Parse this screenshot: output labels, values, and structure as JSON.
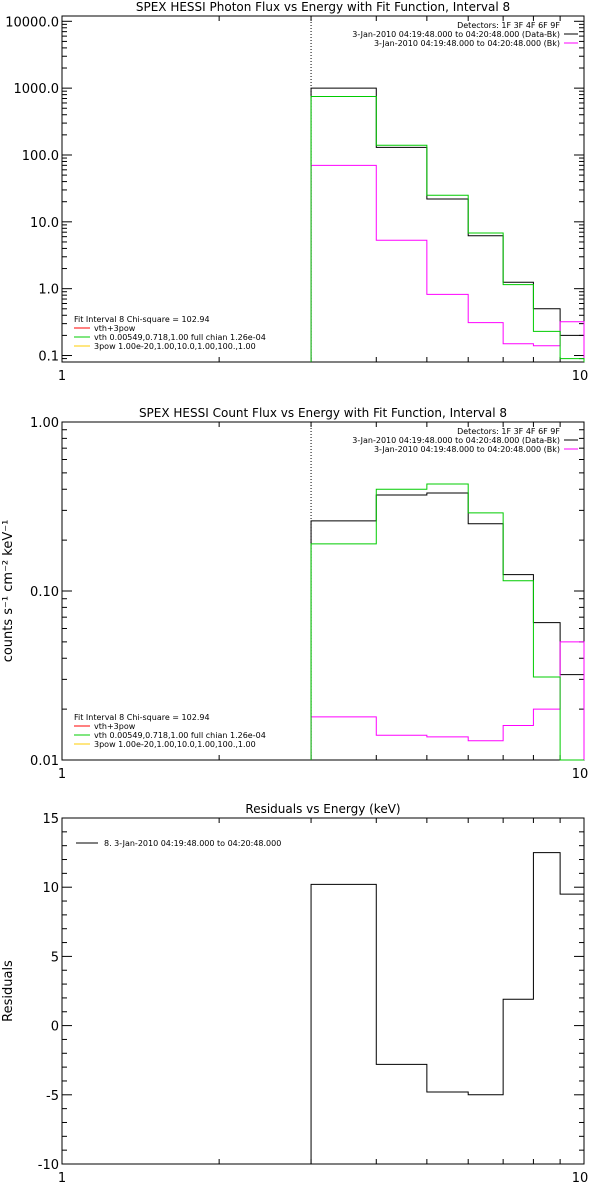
{
  "colors": {
    "data": "#000000",
    "bk": "#ff00ff",
    "model": "#00cc00",
    "vth3pow": "#ff0000",
    "pow3": "#ffcc00"
  },
  "chart_data": [
    {
      "type": "line",
      "title": "SPEX HESSI Photon Flux vs Energy with Fit Function, Interval 8",
      "xlabel": "",
      "ylabel": "",
      "xscale": "log",
      "yscale": "log",
      "xlim": [
        1,
        10
      ],
      "ylim": [
        0.08,
        12000
      ],
      "xticks": [
        "1",
        "10"
      ],
      "yticks": [
        {
          "v": 10000,
          "label": "10000.0"
        },
        {
          "v": 1000,
          "label": "1000.0"
        },
        {
          "v": 100,
          "label": "100.0"
        },
        {
          "v": 10,
          "label": "10.0"
        },
        {
          "v": 1,
          "label": "1.0"
        },
        {
          "v": 0.1,
          "label": "0.1"
        }
      ],
      "marker_x": 3,
      "header": [
        "Detectors: 1F 3F 4F 6F 9F",
        "3-Jan-2010 04:19:48.000 to 04:20:48.000 (Data-Bk)",
        "3-Jan-2010 04:19:48.000 to 04:20:48.000 (Bk)"
      ],
      "legend": {
        "title": "Fit Interval 8   Chi-square = 102.94",
        "entries": [
          "vth+3pow",
          "vth 0.00549,0.718,1.00  full chian 1.26e-04",
          "3pow 1.00e-20,1.00,10.0,1.00,100.,1.00"
        ]
      },
      "series": [
        {
          "name": "3-Jan-2010 04:19:48.000 to 04:20:48.000 (Data-Bk)",
          "color": "#000000",
          "bins": [
            3,
            4,
            5,
            6,
            7,
            8,
            9,
            10
          ],
          "values": [
            1000,
            130,
            22,
            6.2,
            1.25,
            0.5,
            0.2
          ]
        },
        {
          "name": "3-Jan-2010 04:19:48.000 to 04:20:48.000 (Bk)",
          "color": "#ff00ff",
          "bins": [
            3,
            4,
            5,
            6,
            7,
            8,
            9,
            10
          ],
          "values": [
            70,
            5.3,
            0.82,
            0.31,
            0.15,
            0.14,
            0.32
          ]
        },
        {
          "name": "vth 0.00549,0.718,1.00  full chian 1.26e-04",
          "color": "#00cc00",
          "bins": [
            3,
            4,
            5,
            6,
            7,
            8,
            9,
            10
          ],
          "values": [
            750,
            140,
            25,
            6.8,
            1.15,
            0.23,
            0.09
          ]
        }
      ]
    },
    {
      "type": "line",
      "title": "SPEX HESSI Count Flux vs Energy with Fit Function, Interval 8",
      "xlabel": "",
      "ylabel": "counts s⁻¹ cm⁻² keV⁻¹",
      "xscale": "log",
      "yscale": "log",
      "xlim": [
        1,
        10
      ],
      "ylim": [
        0.01,
        1.0
      ],
      "xticks": [
        "1",
        "10"
      ],
      "yticks": [
        {
          "v": 1.0,
          "label": "1.00"
        },
        {
          "v": 0.1,
          "label": "0.10"
        },
        {
          "v": 0.01,
          "label": "0.01"
        }
      ],
      "marker_x": 3,
      "header": [
        "Detectors: 1F 3F 4F 6F 9F",
        "3-Jan-2010 04:19:48.000 to 04:20:48.000 (Data-Bk)",
        "3-Jan-2010 04:19:48.000 to 04:20:48.000 (Bk)"
      ],
      "legend": {
        "title": "Fit Interval 8   Chi-square = 102.94",
        "entries": [
          "vth+3pow",
          "vth 0.00549,0.718,1.00  full chian 1.26e-04",
          "3pow 1.00e-20,1.00,10.0,1.00,100.,1.00"
        ]
      },
      "series": [
        {
          "name": "3-Jan-2010 04:19:48.000 to 04:20:48.000 (Data-Bk)",
          "color": "#000000",
          "bins": [
            3,
            4,
            5,
            6,
            7,
            8,
            9,
            10
          ],
          "values": [
            0.26,
            0.37,
            0.38,
            0.25,
            0.125,
            0.065,
            0.032
          ]
        },
        {
          "name": "3-Jan-2010 04:19:48.000 to 04:20:48.000 (Bk)",
          "color": "#ff00ff",
          "bins": [
            3,
            4,
            5,
            6,
            7,
            8,
            9,
            10
          ],
          "values": [
            0.018,
            0.014,
            0.0137,
            0.013,
            0.016,
            0.02,
            0.05
          ]
        },
        {
          "name": "vth 0.00549,0.718,1.00  full chian 1.26e-04",
          "color": "#00cc00",
          "bins": [
            3,
            4,
            5,
            6,
            7,
            8,
            9,
            10
          ],
          "values": [
            0.19,
            0.4,
            0.43,
            0.29,
            0.115,
            0.031,
            0.009
          ]
        }
      ]
    },
    {
      "type": "line",
      "title": "Residuals vs Energy (keV)",
      "xlabel": "",
      "ylabel": "Residuals",
      "xscale": "log",
      "yscale": "linear",
      "xlim": [
        1,
        10
      ],
      "ylim": [
        -10,
        15
      ],
      "xticks": [
        "1",
        "10"
      ],
      "yticks": [
        {
          "v": 15,
          "label": "15"
        },
        {
          "v": 10,
          "label": "10"
        },
        {
          "v": 5,
          "label": "5"
        },
        {
          "v": 0,
          "label": "0"
        },
        {
          "v": -5,
          "label": "-5"
        },
        {
          "v": -10,
          "label": "-10"
        }
      ],
      "legend": {
        "entries": [
          "8.  3-Jan-2010 04:19:48.000 to 04:20:48.000"
        ]
      },
      "series": [
        {
          "name": "8.  3-Jan-2010 04:19:48.000 to 04:20:48.000",
          "color": "#000000",
          "bins": [
            3,
            4,
            5,
            6,
            7,
            8,
            9,
            10
          ],
          "values": [
            10.2,
            -2.8,
            -4.8,
            -5.0,
            1.9,
            12.5,
            9.5
          ]
        }
      ]
    }
  ]
}
